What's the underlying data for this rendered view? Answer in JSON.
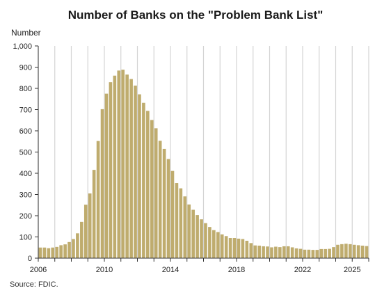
{
  "chart_data": {
    "type": "bar",
    "title": "Number of Banks on the \"Problem Bank List\"",
    "ylabel": "Number",
    "xlabel": "",
    "source": "Source: FDIC.",
    "bar_color": "#bfac6e",
    "grid_color": "#d4d4d4",
    "grid": "vertical",
    "ylim": [
      0,
      1000
    ],
    "yticks": [
      "0",
      "100",
      "200",
      "300",
      "400",
      "500",
      "600",
      "700",
      "800",
      "900",
      "1,000"
    ],
    "xticks": [
      {
        "label": "2006",
        "quarter_index": 0
      },
      {
        "label": "2010",
        "quarter_index": 16
      },
      {
        "label": "2014",
        "quarter_index": 32
      },
      {
        "label": "2018",
        "quarter_index": 48
      },
      {
        "label": "2022",
        "quarter_index": 64
      },
      {
        "label": "2025",
        "quarter_index": 76
      }
    ],
    "first_period": "2006 Q1",
    "frequency": "quarterly",
    "values": [
      50,
      50,
      47,
      50,
      53,
      61,
      65,
      76,
      90,
      117,
      171,
      252,
      305,
      416,
      552,
      702,
      775,
      829,
      860,
      884,
      888,
      865,
      844,
      813,
      772,
      732,
      694,
      651,
      612,
      553,
      515,
      467,
      411,
      354,
      329,
      291,
      253,
      228,
      203,
      183,
      165,
      147,
      132,
      123,
      112,
      104,
      95,
      95,
      92,
      90,
      82,
      71,
      60,
      59,
      56,
      55,
      51,
      54,
      52,
      56,
      56,
      51,
      46,
      44,
      40,
      40,
      39,
      39,
      43,
      43,
      44,
      52,
      63,
      66,
      68,
      66,
      63,
      61,
      59,
      57
    ]
  }
}
